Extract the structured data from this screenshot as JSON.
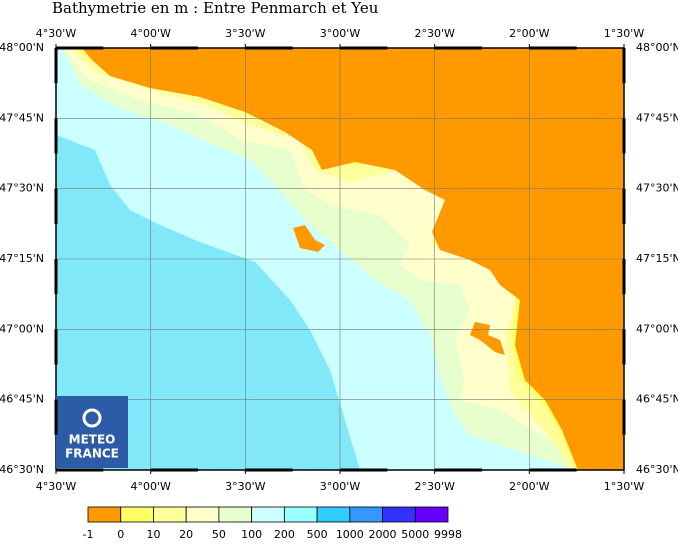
{
  "title": "Bathymetrie en m : Entre Penmarch et Yeu",
  "lon_labels": [
    "4°30'W",
    "4°00'W",
    "3°30'W",
    "3°00'W",
    "2°30'W",
    "2°00'W",
    "1°30'W"
  ],
  "lat_labels": [
    "48°00'N",
    "47°45'N",
    "47°30'N",
    "47°15'N",
    "47°00'N",
    "46°45'N",
    "46°30'N"
  ],
  "colorbar": {
    "levels": [
      -1,
      0,
      10,
      20,
      50,
      100,
      200,
      500,
      1000,
      2000,
      5000,
      9998
    ],
    "colors": [
      "#ff9900",
      "#ffff66",
      "#ffff99",
      "#ffffcc",
      "#e6ffcc",
      "#ccffff",
      "#99ffff",
      "#33ccff",
      "#3399ff",
      "#3333ff",
      "#6600ff"
    ]
  },
  "logo": [
    "METEO",
    "FRANCE"
  ]
}
